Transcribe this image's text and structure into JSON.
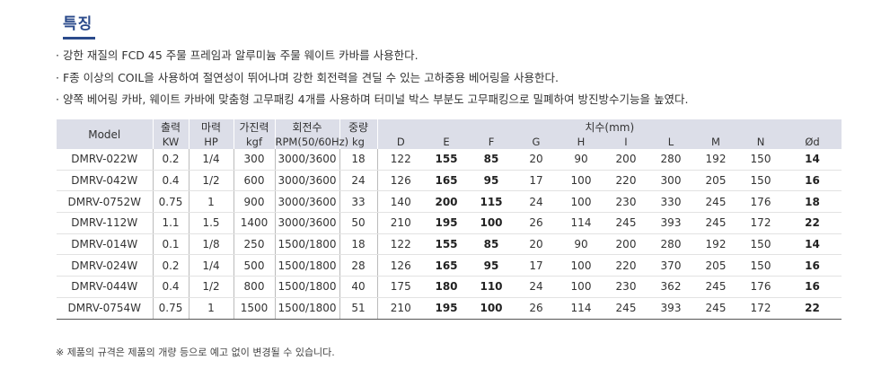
{
  "heading": "특징",
  "features": [
    "· 강한 재질의 FCD 45 주물 프레임과 알루미늄 주물 웨이트 카바를 사용한다.",
    "· F종 이상의 COIL을 사용하여 절연성이 뛰어나며 강한 회전력을 견딜 수 있는 고하중용 베어링을 사용한다.",
    "· 양쪽 베어링 카바, 웨이트 카바에 맞춤형 고무패킹 4개를 사용하며 터미널 박스 부분도 고무패킹으로 밀폐하여 방진방수기능을 높였다."
  ],
  "table": {
    "model_header": "Model",
    "group_headers": [
      "출력",
      "마력",
      "가진력",
      "회전수",
      "중량"
    ],
    "unit_headers": [
      "KW",
      "HP",
      "kgf",
      "RPM(50/60Hz)",
      "kg"
    ],
    "dim_header": "치수(mm)",
    "dim_columns": [
      "D",
      "E",
      "F",
      "G",
      "H",
      "I",
      "L",
      "M",
      "N",
      "Ød"
    ],
    "rows": [
      [
        "DMRV-022W",
        "0.2",
        "1/4",
        "300",
        "3000/3600",
        "18",
        "122",
        "155",
        "85",
        "20",
        "90",
        "200",
        "280",
        "192",
        "150",
        "14"
      ],
      [
        "DMRV-042W",
        "0.4",
        "1/2",
        "600",
        "3000/3600",
        "24",
        "126",
        "165",
        "95",
        "17",
        "100",
        "220",
        "300",
        "205",
        "150",
        "16"
      ],
      [
        "DMRV-0752W",
        "0.75",
        "1",
        "900",
        "3000/3600",
        "33",
        "140",
        "200",
        "115",
        "24",
        "100",
        "230",
        "330",
        "245",
        "176",
        "18"
      ],
      [
        "DMRV-112W",
        "1.1",
        "1.5",
        "1400",
        "3000/3600",
        "50",
        "210",
        "195",
        "100",
        "26",
        "114",
        "245",
        "393",
        "245",
        "172",
        "22"
      ],
      [
        "DMRV-014W",
        "0.1",
        "1/8",
        "250",
        "1500/1800",
        "18",
        "122",
        "155",
        "85",
        "20",
        "90",
        "200",
        "280",
        "192",
        "150",
        "14"
      ],
      [
        "DMRV-024W",
        "0.2",
        "1/4",
        "500",
        "1500/1800",
        "28",
        "126",
        "165",
        "95",
        "17",
        "100",
        "220",
        "370",
        "205",
        "150",
        "16"
      ],
      [
        "DMRV-044W",
        "0.4",
        "1/2",
        "800",
        "1500/1800",
        "40",
        "175",
        "180",
        "110",
        "24",
        "100",
        "230",
        "362",
        "245",
        "176",
        "16"
      ],
      [
        "DMRV-0754W",
        "0.75",
        "1",
        "1500",
        "1500/1800",
        "51",
        "210",
        "195",
        "100",
        "26",
        "114",
        "245",
        "393",
        "245",
        "172",
        "22"
      ]
    ]
  },
  "note": "※ 제품의 규격은 제품의 개량 등으로 예고 없이 변경될 수 있습니다."
}
